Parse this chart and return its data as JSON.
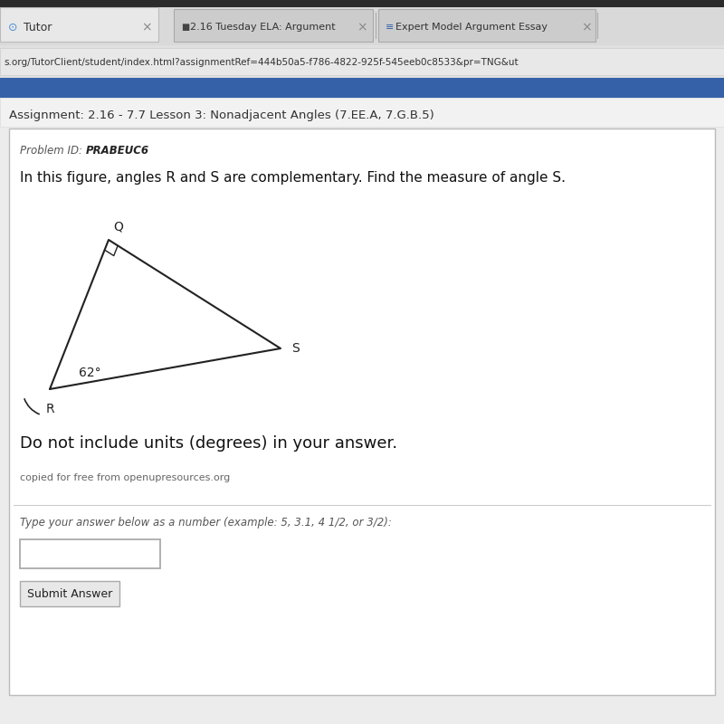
{
  "bg_color": "#c8c8c8",
  "tab_bar_bg": "#d9d9d9",
  "active_tab_bg": "#e8e8e8",
  "inactive_tab_bg": "#cccccc",
  "url_bar_bg": "#e0e0e0",
  "url_text_bg": "#e8e8e8",
  "blue_bar_color": "#3461a8",
  "page_bg": "#ececec",
  "assign_bar_bg": "#f2f2f2",
  "content_bg": "#ffffff",
  "border_color": "#bbbbbb",
  "browser_title1": "Tutor",
  "browser_title2": "2.16 Tuesday ELA: Argument",
  "browser_title3": "Expert Model Argument Essay",
  "url_text": "s.org/TutorClient/student/index.html?assignmentRef=444b50a5-f786-4822-925f-545eeb0c8533&pr=TNG&ut",
  "assignment_title": "Assignment: 2.16 - 7.7 Lesson 3: Nonadjacent Angles (7.EE.A, 7.G.B.5)",
  "problem_id_label": "Problem ID:  ",
  "problem_id_value": "PRABEUC6",
  "question_text": "In this figure, angles R and S are complementary. Find the measure of angle S.",
  "angle_label": "62°",
  "vertex_Q": "Q",
  "vertex_S": "S",
  "vertex_R": "R",
  "do_not_include": "Do not include units (degrees) in your answer.",
  "credit_text": "copied for free from openupresources.org",
  "answer_prompt": "Type your answer below as a number (example: 5, 3.1, 4 1/2, or 3/2):",
  "submit_button": "Submit Answer"
}
